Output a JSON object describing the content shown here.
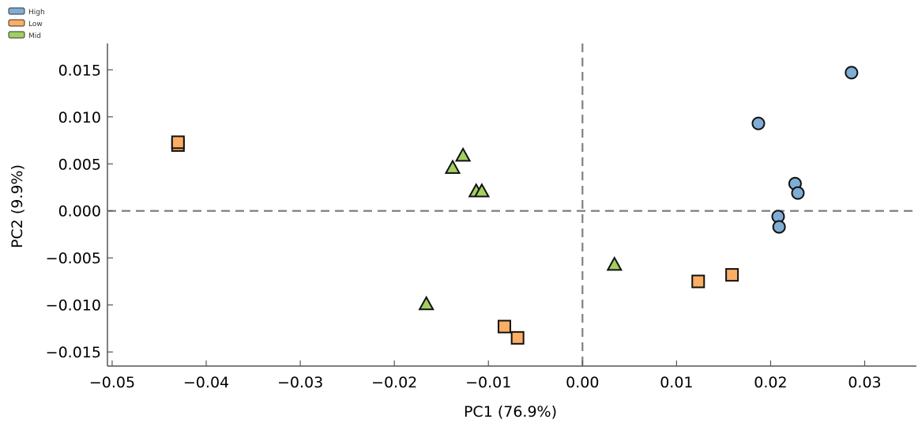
{
  "chart_data": {
    "type": "scatter",
    "title": "",
    "xlabel": "PC1 (76.9%)",
    "ylabel": "PC2 (9.9%)",
    "xlim": [
      -0.0505,
      0.0355
    ],
    "ylim": [
      -0.0165,
      0.0178
    ],
    "xticks": [
      -0.05,
      -0.04,
      -0.03,
      -0.02,
      -0.01,
      0.0,
      0.01,
      0.02,
      0.03
    ],
    "xtick_labels": [
      "−0.05",
      "−0.04",
      "−0.03",
      "−0.02",
      "−0.01",
      "0.00",
      "0.01",
      "0.02",
      "0.03"
    ],
    "yticks": [
      -0.015,
      -0.01,
      -0.005,
      0.0,
      0.005,
      0.01,
      0.015
    ],
    "ytick_labels": [
      "−0.015",
      "−0.010",
      "−0.005",
      "0.000",
      "0.005",
      "0.010",
      "0.015"
    ],
    "reference_lines": {
      "x": 0.0,
      "y": 0.0,
      "style": "dashed",
      "color": "#808080"
    },
    "grid": false,
    "legend_position": "top-left",
    "series": [
      {
        "name": "High",
        "marker": "circle",
        "color": "#7fadd4",
        "points": [
          [
            0.0286,
            0.0147
          ],
          [
            0.0187,
            0.0093
          ],
          [
            0.0226,
            0.0029
          ],
          [
            0.0229,
            0.0019
          ],
          [
            0.0208,
            -0.0006
          ],
          [
            0.0209,
            -0.0017
          ]
        ]
      },
      {
        "name": "Low",
        "marker": "square",
        "color": "#fbae64",
        "points": [
          [
            -0.043,
            0.007
          ],
          [
            -0.043,
            0.0073
          ],
          [
            -0.0083,
            -0.0123
          ],
          [
            -0.0069,
            -0.0135
          ],
          [
            0.0123,
            -0.0075
          ],
          [
            0.0159,
            -0.0068
          ]
        ]
      },
      {
        "name": "Mid",
        "marker": "triangle",
        "color": "#a3cf62",
        "points": [
          [
            -0.0127,
            0.0059
          ],
          [
            -0.0138,
            0.0046
          ],
          [
            -0.0113,
            0.0021
          ],
          [
            -0.0107,
            0.0021
          ],
          [
            -0.0166,
            -0.0099
          ],
          [
            0.0034,
            -0.0057
          ]
        ]
      }
    ]
  }
}
